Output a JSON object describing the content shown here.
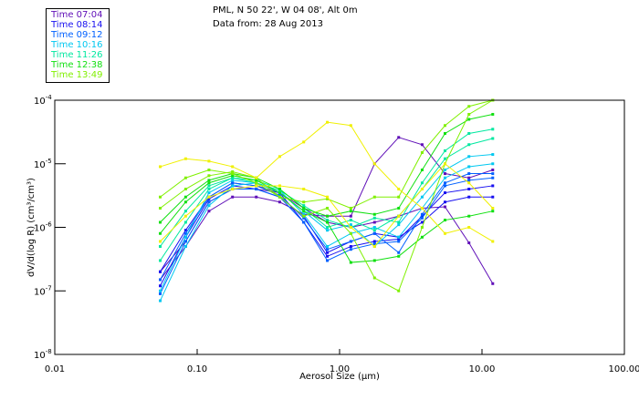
{
  "chart_data": {
    "type": "line",
    "title": "PML, N 50 22', W 04 08', Alt 0m",
    "subtitle": "Data from: 28 Aug 2013",
    "xlabel": "Aerosol Size (µm)",
    "ylabel": "dV/d(log R) (cm³/cm³)",
    "xscale": "log",
    "yscale": "log",
    "xlim": [
      0.01,
      100
    ],
    "ylim": [
      1e-08,
      0.0001
    ],
    "xticks": [
      "0.01",
      "0.10",
      "1.00",
      "10.00",
      "100.00"
    ],
    "yticks": [
      {
        "base": "10",
        "exp": "-4"
      },
      {
        "base": "10",
        "exp": "-5"
      },
      {
        "base": "10",
        "exp": "-6"
      },
      {
        "base": "10",
        "exp": "-7"
      },
      {
        "base": "10",
        "exp": "-8"
      }
    ],
    "legend_position": "top-left",
    "legend": [
      {
        "label": "Time 07:04",
        "color": "#6010b8"
      },
      {
        "label": "Time 08:14",
        "color": "#1810f0"
      },
      {
        "label": "Time 09:12",
        "color": "#0060ff"
      },
      {
        "label": "Time 10:16",
        "color": "#00c8f0"
      },
      {
        "label": "Time 11:26",
        "color": "#00e8a0"
      },
      {
        "label": "Time 12:38",
        "color": "#10e010"
      },
      {
        "label": "Time 13:49",
        "color": "#80f000"
      }
    ],
    "x": [
      0.055,
      0.083,
      0.121,
      0.177,
      0.26,
      0.38,
      0.56,
      0.82,
      1.2,
      1.76,
      2.6,
      3.8,
      5.5,
      8.1,
      11.9
    ],
    "series": [
      {
        "color": "#6010b8",
        "values": [
          2e-07,
          6e-07,
          2.5e-06,
          4e-06,
          4e-06,
          3.5e-06,
          2e-06,
          1.2e-06,
          1e-06,
          1.2e-06,
          1.5e-06,
          2e-06,
          2.1e-06,
          5.7e-07,
          1.3e-07
        ]
      },
      {
        "color": "#6010b8",
        "values": [
          1.5e-07,
          5e-07,
          1.8e-06,
          3e-06,
          3e-06,
          2.5e-06,
          1.6e-06,
          1.5e-06,
          1.5e-06,
          1e-05,
          2.6e-05,
          2e-05,
          7e-06,
          6e-06,
          8e-06
        ]
      },
      {
        "color": "#1810f0",
        "values": [
          1.2e-07,
          7e-07,
          2.8e-06,
          4.5e-06,
          4e-06,
          3e-06,
          1.5e-06,
          4e-07,
          6e-07,
          8e-07,
          7e-07,
          1.2e-06,
          2.5e-06,
          3e-06,
          3e-06
        ]
      },
      {
        "color": "#1810f0",
        "values": [
          2e-07,
          9e-07,
          3e-06,
          5e-06,
          4.5e-06,
          3.5e-06,
          1.2e-06,
          3.5e-07,
          5e-07,
          6e-07,
          6.5e-07,
          1.5e-06,
          3.5e-06,
          4e-06,
          4.5e-06
        ]
      },
      {
        "color": "#0060ff",
        "values": [
          9e-08,
          6e-07,
          2.5e-06,
          4e-06,
          4e-06,
          3e-06,
          1.2e-06,
          3e-07,
          4.5e-07,
          5.5e-07,
          6e-07,
          1.4e-06,
          4.5e-06,
          5.5e-06,
          6e-06
        ]
      },
      {
        "color": "#0060ff",
        "values": [
          1.5e-07,
          8e-07,
          3e-06,
          5e-06,
          4.5e-06,
          3.2e-06,
          1.4e-06,
          4.5e-07,
          6e-07,
          8e-07,
          4e-07,
          1.6e-06,
          5e-06,
          7e-06,
          7e-06
        ]
      },
      {
        "color": "#00c8f0",
        "values": [
          7e-08,
          5e-07,
          2.2e-06,
          4.5e-06,
          5e-06,
          3.8e-06,
          1.6e-06,
          5e-07,
          8e-07,
          1e-06,
          7e-07,
          2e-06,
          6e-06,
          9e-06,
          1e-05
        ]
      },
      {
        "color": "#00c8f0",
        "values": [
          1e-07,
          7e-07,
          3.5e-06,
          5.5e-06,
          5e-06,
          3.5e-06,
          1.8e-06,
          9e-07,
          1.1e-06,
          5e-07,
          1.1e-06,
          3e-06,
          8e-06,
          1.3e-05,
          1.4e-05
        ]
      },
      {
        "color": "#00e8a0",
        "values": [
          3e-07,
          1.2e-06,
          4e-06,
          6e-06,
          5.5e-06,
          4e-06,
          2e-06,
          1e-06,
          1.3e-06,
          9e-07,
          1.5e-06,
          4e-06,
          1.2e-05,
          2e-05,
          2.5e-05
        ]
      },
      {
        "color": "#00e8a0",
        "values": [
          5e-07,
          1.8e-06,
          4.5e-06,
          6e-06,
          5e-06,
          3.8e-06,
          2.2e-06,
          1.3e-06,
          1e-06,
          1.4e-06,
          1.2e-06,
          5e-06,
          1.6e-05,
          3e-05,
          3.5e-05
        ]
      },
      {
        "color": "#10e010",
        "values": [
          8e-07,
          2.5e-06,
          5e-06,
          6.5e-06,
          5.5e-06,
          3.5e-06,
          1.8e-06,
          1.2e-06,
          2.8e-07,
          3e-07,
          3.5e-07,
          7e-07,
          1.3e-06,
          1.5e-06,
          1.8e-06
        ]
      },
      {
        "color": "#10e010",
        "values": [
          1.2e-06,
          3e-06,
          5.5e-06,
          7e-06,
          6e-06,
          4e-06,
          2e-06,
          1.5e-06,
          1.8e-06,
          1.6e-06,
          2e-06,
          8e-06,
          3e-05,
          5e-05,
          6e-05
        ]
      },
      {
        "color": "#80f000",
        "values": [
          2e-06,
          4e-06,
          6.5e-06,
          7.5e-06,
          6e-06,
          3e-06,
          1.5e-06,
          2e-06,
          8e-07,
          1.6e-07,
          1e-07,
          1e-06,
          1e-05,
          6e-05,
          0.0001
        ]
      },
      {
        "color": "#80f000",
        "values": [
          3e-06,
          6e-06,
          8e-06,
          7e-06,
          5e-06,
          3e-06,
          2.5e-06,
          2.8e-06,
          2e-06,
          3e-06,
          3e-06,
          1.5e-05,
          4e-05,
          8e-05,
          0.0001
        ]
      },
      {
        "color": "#f0f000",
        "values": [
          9e-06,
          1.2e-05,
          1.1e-05,
          9e-06,
          6e-06,
          1.3e-05,
          2.2e-05,
          4.5e-05,
          4e-05,
          1e-05,
          4e-06,
          2e-06,
          8e-07,
          1e-06,
          6e-07
        ]
      },
      {
        "color": "#f0f000",
        "values": [
          6e-07,
          1.5e-06,
          3e-06,
          4e-06,
          4.5e-06,
          4.5e-06,
          4e-06,
          3e-06,
          1e-06,
          5e-07,
          1.5e-06,
          4e-06,
          1e-05,
          5e-06,
          2e-06
        ]
      }
    ]
  }
}
